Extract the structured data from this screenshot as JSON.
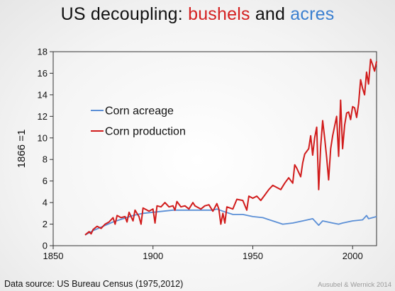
{
  "title": {
    "part1": "US decoupling: ",
    "part2": "bushels",
    "part3": " and ",
    "part4": "acres"
  },
  "source": "Data source: US Bureau Census (1975,2012)",
  "credit": "Ausubel & Wernick 2014",
  "colors": {
    "acreage": "#5b8fd6",
    "production": "#d11c1c",
    "axis": "#333333"
  },
  "chart_data": {
    "type": "line",
    "title": "US decoupling: bushels and acres",
    "xlabel": "",
    "ylabel": "1866 =1",
    "xlim": [
      1850,
      2012
    ],
    "ylim": [
      0,
      18
    ],
    "xticks": [
      1850,
      1900,
      1950,
      2000
    ],
    "yticks": [
      0,
      2,
      4,
      6,
      8,
      10,
      12,
      14,
      16,
      18
    ],
    "grid": false,
    "legend_position": "upper-left",
    "series": [
      {
        "name": "Corn acreage",
        "x": [
          1866,
          1870,
          1875,
          1880,
          1885,
          1890,
          1895,
          1900,
          1905,
          1910,
          1915,
          1920,
          1925,
          1930,
          1932,
          1935,
          1940,
          1945,
          1950,
          1955,
          1960,
          1965,
          1970,
          1975,
          1980,
          1983,
          1985,
          1990,
          1993,
          1995,
          2000,
          2005,
          2007,
          2008,
          2010,
          2012
        ],
        "y": [
          1.0,
          1.4,
          1.8,
          2.2,
          2.5,
          2.8,
          3.0,
          3.1,
          3.2,
          3.3,
          3.3,
          3.3,
          3.3,
          3.3,
          3.4,
          3.2,
          2.9,
          2.9,
          2.7,
          2.6,
          2.3,
          2.0,
          2.1,
          2.3,
          2.5,
          1.9,
          2.3,
          2.1,
          2.0,
          2.1,
          2.3,
          2.4,
          2.8,
          2.5,
          2.6,
          2.7
        ]
      },
      {
        "name": "Corn production",
        "x": [
          1866,
          1868,
          1869,
          1870,
          1872,
          1874,
          1876,
          1878,
          1880,
          1881,
          1882,
          1884,
          1886,
          1887,
          1888,
          1890,
          1891,
          1893,
          1894,
          1895,
          1896,
          1898,
          1900,
          1901,
          1902,
          1904,
          1906,
          1908,
          1910,
          1911,
          1912,
          1914,
          1916,
          1918,
          1920,
          1921,
          1924,
          1926,
          1928,
          1930,
          1932,
          1933,
          1934,
          1935,
          1936,
          1937,
          1940,
          1942,
          1945,
          1947,
          1948,
          1950,
          1952,
          1954,
          1956,
          1958,
          1960,
          1962,
          1964,
          1966,
          1968,
          1970,
          1971,
          1972,
          1974,
          1975,
          1976,
          1978,
          1979,
          1980,
          1981,
          1982,
          1983,
          1984,
          1985,
          1986,
          1987,
          1988,
          1989,
          1990,
          1992,
          1993,
          1994,
          1995,
          1996,
          1997,
          1998,
          1999,
          2000,
          2001,
          2002,
          2003,
          2004,
          2005,
          2006,
          2007,
          2008,
          2009,
          2010,
          2011,
          2012
        ],
        "y": [
          1.0,
          1.3,
          1.1,
          1.5,
          1.8,
          1.6,
          2.0,
          2.2,
          2.6,
          2.0,
          2.8,
          2.6,
          2.7,
          2.2,
          3.1,
          2.3,
          3.3,
          2.7,
          2.0,
          3.5,
          3.4,
          3.2,
          3.4,
          2.1,
          3.7,
          3.6,
          4.0,
          3.6,
          3.7,
          3.3,
          4.1,
          3.6,
          3.7,
          3.4,
          4.0,
          3.7,
          3.4,
          3.7,
          3.8,
          3.2,
          3.9,
          3.4,
          2.0,
          3.0,
          2.1,
          3.6,
          3.4,
          4.3,
          4.2,
          3.3,
          4.6,
          4.4,
          4.6,
          4.2,
          4.7,
          5.2,
          5.6,
          5.4,
          5.2,
          5.8,
          6.3,
          5.8,
          7.5,
          7.2,
          6.4,
          7.7,
          8.5,
          9.0,
          10.2,
          8.4,
          10.0,
          11.0,
          5.2,
          9.2,
          11.6,
          10.0,
          8.2,
          6.1,
          9.0,
          10.2,
          12.0,
          8.3,
          13.5,
          9.0,
          11.2,
          12.3,
          12.4,
          11.7,
          12.9,
          12.8,
          11.9,
          13.2,
          15.4,
          14.6,
          14.0,
          16.1,
          15.0,
          17.3,
          16.8,
          16.2,
          17.1
        ]
      }
    ]
  }
}
